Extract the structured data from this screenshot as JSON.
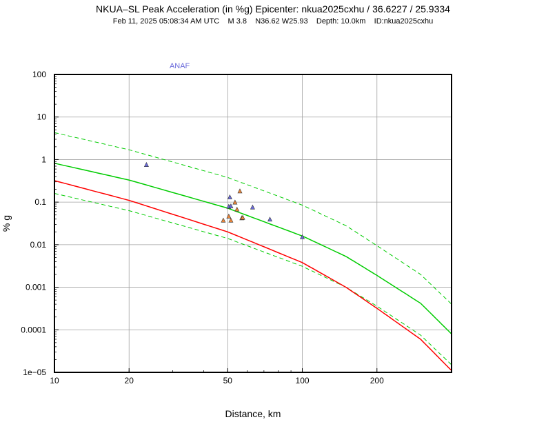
{
  "header": {
    "title": "NKUA–SL Peak Acceleration (in %g) Epicenter: nkua2025cxhu / 36.6227 / 25.9334",
    "subtitle": "Feb 11, 2025 05:08:34 AM UTC    M 3.8    N36.62 W25.93    Depth: 10.0km    ID:nkua2025cxhu"
  },
  "chart_data": {
    "type": "scatter",
    "title": "NKUA–SL Peak Acceleration (in %g) Epicenter: nkua2025cxhu / 36.6227 / 25.9334",
    "xlabel": "Distance, km",
    "ylabel": "% g",
    "xscale": "log",
    "yscale": "log",
    "xlim": [
      10,
      400
    ],
    "ylim": [
      1e-05,
      100
    ],
    "grid": true,
    "x_ticks": [
      10,
      20,
      50,
      100,
      200
    ],
    "x_tick_labels": [
      "10",
      "20",
      "50",
      "100",
      "200"
    ],
    "y_ticks": [
      1e-05,
      0.0001,
      0.001,
      0.01,
      0.1,
      1,
      10,
      100
    ],
    "y_tick_labels": [
      "1e−05",
      "0.0001",
      "0.001",
      "0.01",
      "0.1",
      "1",
      "10",
      "100"
    ],
    "annotations": [
      {
        "text": "ANAF",
        "x": 32,
        "y": 100,
        "color": "#6b6bdb"
      }
    ],
    "curves": [
      {
        "style": "solid",
        "color": "#00cc00",
        "x": [
          10,
          20,
          50,
          100,
          150,
          200,
          300,
          400
        ],
        "y": [
          0.82,
          0.33,
          0.072,
          0.016,
          0.0053,
          0.0019,
          0.00042,
          8e-05
        ]
      },
      {
        "style": "dashed",
        "color": "#00cc00",
        "x": [
          10,
          20,
          50,
          100,
          150,
          200,
          300,
          400
        ],
        "y": [
          4.3,
          1.7,
          0.38,
          0.085,
          0.028,
          0.0095,
          0.002,
          0.0004
        ]
      },
      {
        "style": "dashed",
        "color": "#00cc00",
        "x": [
          10,
          20,
          50,
          100,
          150,
          200,
          300,
          400
        ],
        "y": [
          0.16,
          0.063,
          0.014,
          0.0031,
          0.001,
          0.00036,
          7.5e-05,
          1.5e-05
        ]
      },
      {
        "style": "solid",
        "color": "#ff0000",
        "x": [
          10,
          20,
          50,
          100,
          150,
          200,
          300,
          400
        ],
        "y": [
          0.32,
          0.11,
          0.02,
          0.0038,
          0.001,
          0.00032,
          6e-05,
          1.1e-05
        ]
      }
    ],
    "series": [
      {
        "color": "#6b6bdb",
        "x": [
          23.5,
          50.5,
          51,
          51.5,
          63,
          74,
          100
        ],
        "y": [
          0.75,
          0.078,
          0.13,
          0.08,
          0.075,
          0.039,
          0.015
        ]
      },
      {
        "color": "#e8853a",
        "x": [
          48,
          50.5,
          51.5,
          53.5,
          54.5,
          56,
          57,
          57.5
        ],
        "y": [
          0.037,
          0.046,
          0.037,
          0.098,
          0.067,
          0.18,
          0.042,
          0.043
        ]
      }
    ]
  }
}
